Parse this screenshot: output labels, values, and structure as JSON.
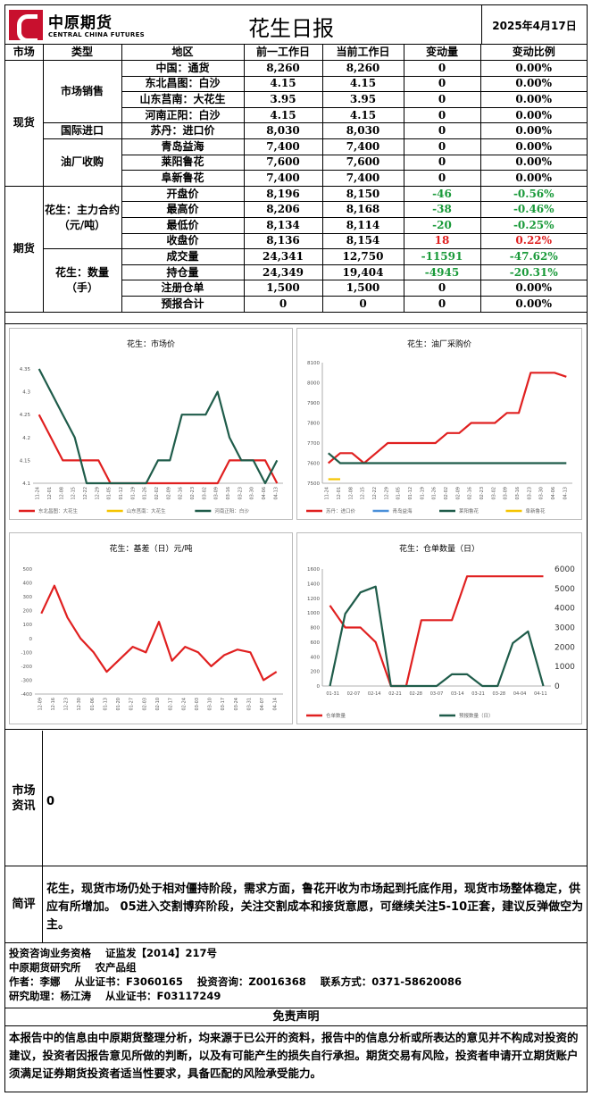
{
  "header": {
    "logo_cn": "中原期货",
    "logo_en": "CENTRAL CHINA FUTURES",
    "title": "花生日报",
    "date": "2025年4月17日"
  },
  "table": {
    "headers": [
      "市场",
      "类型",
      "地区",
      "前一工作日",
      "当前工作日",
      "变动量",
      "变动比例"
    ],
    "spot_label": "现货",
    "futures_label": "期货",
    "groups": {
      "sales": "市场销售",
      "import": "国际进口",
      "mill": "油厂收购",
      "contract": "花生：主力合约（元/吨）",
      "qty": "花生：数量（手）"
    },
    "rows": [
      {
        "name": "中国：通货",
        "prev": "8,260",
        "curr": "8,260",
        "chg": "0",
        "pct": "0.00%"
      },
      {
        "name": "东北昌图：白沙",
        "prev": "4.15",
        "curr": "4.15",
        "chg": "0",
        "pct": "0.00%"
      },
      {
        "name": "山东莒南：大花生",
        "prev": "3.95",
        "curr": "3.95",
        "chg": "0",
        "pct": "0.00%"
      },
      {
        "name": "河南正阳：白沙",
        "prev": "4.15",
        "curr": "4.15",
        "chg": "0",
        "pct": "0.00%"
      },
      {
        "name": "苏丹：进口价",
        "prev": "8,030",
        "curr": "8,030",
        "chg": "0",
        "pct": "0.00%"
      },
      {
        "name": "青岛益海",
        "prev": "7,400",
        "curr": "7,400",
        "chg": "0",
        "pct": "0.00%"
      },
      {
        "name": "莱阳鲁花",
        "prev": "7,600",
        "curr": "7,600",
        "chg": "0",
        "pct": "0.00%"
      },
      {
        "name": "阜新鲁花",
        "prev": "7,400",
        "curr": "7,400",
        "chg": "0",
        "pct": "0.00%"
      },
      {
        "name": "开盘价",
        "prev": "8,196",
        "curr": "8,150",
        "chg": "-46",
        "pct": "-0.56%"
      },
      {
        "name": "最高价",
        "prev": "8,206",
        "curr": "8,168",
        "chg": "-38",
        "pct": "-0.46%"
      },
      {
        "name": "最低价",
        "prev": "8,134",
        "curr": "8,114",
        "chg": "-20",
        "pct": "-0.25%"
      },
      {
        "name": "收盘价",
        "prev": "8,136",
        "curr": "8,154",
        "chg": "18",
        "pct": "0.22%"
      },
      {
        "name": "成交量",
        "prev": "24,341",
        "curr": "12,750",
        "chg": "-11591",
        "pct": "-47.62%"
      },
      {
        "name": "持仓量",
        "prev": "24,349",
        "curr": "19,404",
        "chg": "-4945",
        "pct": "-20.31%"
      },
      {
        "name": "注册仓单",
        "prev": "1,500",
        "curr": "1,500",
        "chg": "0",
        "pct": "0.00%"
      },
      {
        "name": "预报合计",
        "prev": "0",
        "curr": "0",
        "chg": "0",
        "pct": "0.00%"
      }
    ]
  },
  "colors": {
    "red": "#e02020",
    "yellow": "#f5c400",
    "green": "#1f5c4a",
    "blue": "#4a90d9",
    "gray": "#888888"
  },
  "chart_data": [
    {
      "type": "line",
      "title": "花生：市场价",
      "ylim": [
        4.1,
        4.35
      ],
      "yticks": [
        "4.1",
        "4.15",
        "4.2",
        "4.25",
        "4.3",
        "4.35"
      ],
      "xticks": [
        "11-24",
        "12-01",
        "12-08",
        "12-15",
        "12-22",
        "12-29",
        "01-05",
        "01-12",
        "01-19",
        "01-26",
        "02-02",
        "02-09",
        "02-16",
        "02-23",
        "03-02",
        "03-09",
        "03-16",
        "03-23",
        "03-30",
        "04-06",
        "04-13"
      ],
      "series": [
        {
          "name": "东北昌图：大花生",
          "color": "#e02020",
          "values": [
            4.25,
            4.2,
            4.15,
            4.15,
            4.15,
            4.15,
            4.1,
            4.1,
            4.1,
            4.1,
            4.1,
            4.1,
            4.1,
            4.1,
            4.1,
            4.1,
            4.15,
            4.15,
            4.15,
            4.15,
            4.1
          ]
        },
        {
          "name": "山东莒南：大花生",
          "color": "#f5c400",
          "values": []
        },
        {
          "name": "河南正阳：白沙",
          "color": "#1f5c4a",
          "values": [
            4.35,
            4.3,
            4.25,
            4.2,
            4.1,
            4.1,
            4.1,
            4.1,
            4.1,
            4.1,
            4.15,
            4.15,
            4.25,
            4.25,
            4.25,
            4.3,
            4.2,
            4.15,
            4.15,
            4.1,
            4.15
          ]
        }
      ]
    },
    {
      "type": "line",
      "title": "花生：油厂采购价",
      "ylim": [
        7500,
        8100
      ],
      "yticks": [
        "7500",
        "7600",
        "7700",
        "7800",
        "7900",
        "8000",
        "8100"
      ],
      "xticks": [
        "11-24",
        "12-01",
        "12-08",
        "12-15",
        "12-22",
        "12-29",
        "01-05",
        "01-12",
        "01-19",
        "01-26",
        "02-02",
        "02-09",
        "02-16",
        "02-23",
        "03-02",
        "03-09",
        "03-16",
        "03-23",
        "03-30",
        "04-06",
        "04-13"
      ],
      "series": [
        {
          "name": "苏丹：进口价",
          "color": "#e02020",
          "values": [
            7600,
            7650,
            7650,
            7600,
            7650,
            7700,
            7700,
            7700,
            7700,
            7700,
            7750,
            7750,
            7800,
            7800,
            7800,
            7850,
            7850,
            8050,
            8050,
            8050,
            8030
          ]
        },
        {
          "name": "青岛益海",
          "color": "#4a90d9",
          "values": []
        },
        {
          "name": "莱阳鲁花",
          "color": "#1f5c4a",
          "values": [
            7650,
            7600,
            7600,
            7600,
            7600,
            7600,
            7600,
            7600,
            7600,
            7600,
            7600,
            7600,
            7600,
            7600,
            7600,
            7600,
            7600,
            7600,
            7600,
            7600,
            7600
          ]
        },
        {
          "name": "阜新鲁花",
          "color": "#f5c400",
          "values": [
            7520,
            7520,
            null,
            null,
            null,
            7520,
            null,
            null,
            null,
            null,
            null,
            null,
            null,
            null,
            null,
            null,
            null,
            null,
            null,
            null,
            null
          ]
        }
      ]
    },
    {
      "type": "line",
      "title": "花生：基差（日）元/吨",
      "ylim": [
        -400,
        500
      ],
      "yticks": [
        "-400",
        "-300",
        "-200",
        "-100",
        "0",
        "100",
        "200",
        "300",
        "400",
        "500"
      ],
      "xticks": [
        "12-09",
        "12-16",
        "12-23",
        "12-30",
        "01-06",
        "01-13",
        "01-20",
        "01-27",
        "02-03",
        "02-10",
        "02-17",
        "02-24",
        "03-03",
        "03-10",
        "03-17",
        "03-24",
        "03-31",
        "04-07",
        "04-14"
      ],
      "series": [
        {
          "name": "",
          "color": "#e02020",
          "values": [
            180,
            380,
            150,
            0,
            -100,
            -240,
            -150,
            -60,
            -100,
            120,
            -160,
            -60,
            -100,
            -200,
            -120,
            -80,
            -100,
            -300,
            -240
          ]
        }
      ]
    },
    {
      "type": "line",
      "title": "花生：仓单数量（日）",
      "ylim": [
        0,
        1600
      ],
      "ylim2": [
        0,
        6000
      ],
      "yticks": [
        "0",
        "200",
        "400",
        "600",
        "800",
        "1000",
        "1200",
        "1400",
        "1600"
      ],
      "yticks2": [
        "0",
        "1000",
        "2000",
        "3000",
        "4000",
        "5000",
        "6000"
      ],
      "xticks": [
        "01-31",
        "02-07",
        "02-14",
        "02-21",
        "02-28",
        "03-07",
        "03-14",
        "03-21",
        "03-28",
        "04-04",
        "04-11"
      ],
      "series": [
        {
          "name": "仓单数量",
          "color": "#e02020",
          "axis": "left",
          "values": [
            1100,
            800,
            800,
            600,
            0,
            0,
            900,
            900,
            900,
            1500,
            1500,
            1500,
            1500,
            1500,
            1500
          ]
        },
        {
          "name": "预报数量（日）",
          "color": "#1f5c4a",
          "axis": "right",
          "values": [
            0,
            3700,
            4800,
            5100,
            0,
            0,
            0,
            0,
            600,
            600,
            0,
            0,
            2200,
            2800,
            0
          ]
        }
      ]
    }
  ],
  "market_info": {
    "label": "市场资讯",
    "text": "0"
  },
  "comment": {
    "label": "简评",
    "text": "花生，现货市场仍处于相对僵持阶段，需求方面，鲁花开收为市场起到托底作用，现货市场整体稳定，供应有所增加。 05进入交割博弈阶段，关注交割成本和接货意愿，可继续关注5-10正套，建议反弹做空为主。"
  },
  "info": {
    "line1": "投资咨询业务资格    证监发【2014】217号",
    "line2": "中原期货研究所    农产品组",
    "line3": "作者：李娜    从业证书：F3060165    投资咨询：Z0016368    联系方式：0371-58620086",
    "line4": "研究助理：杨江涛    从业证书：F03117249"
  },
  "disclaimer": {
    "title": "免责声明",
    "text": "本报告中的信息由中原期货整理分析，均来源于已公开的资料，报告中的信息分析或所表达的意见并不构成对投资的建议，投资者因报告意见所做的判断，以及有可能产生的损失自行承担。期货交易有风险，投资者申请开立期货账户须满足证券期货投资者适当性要求，具备匹配的风险承受能力。"
  }
}
